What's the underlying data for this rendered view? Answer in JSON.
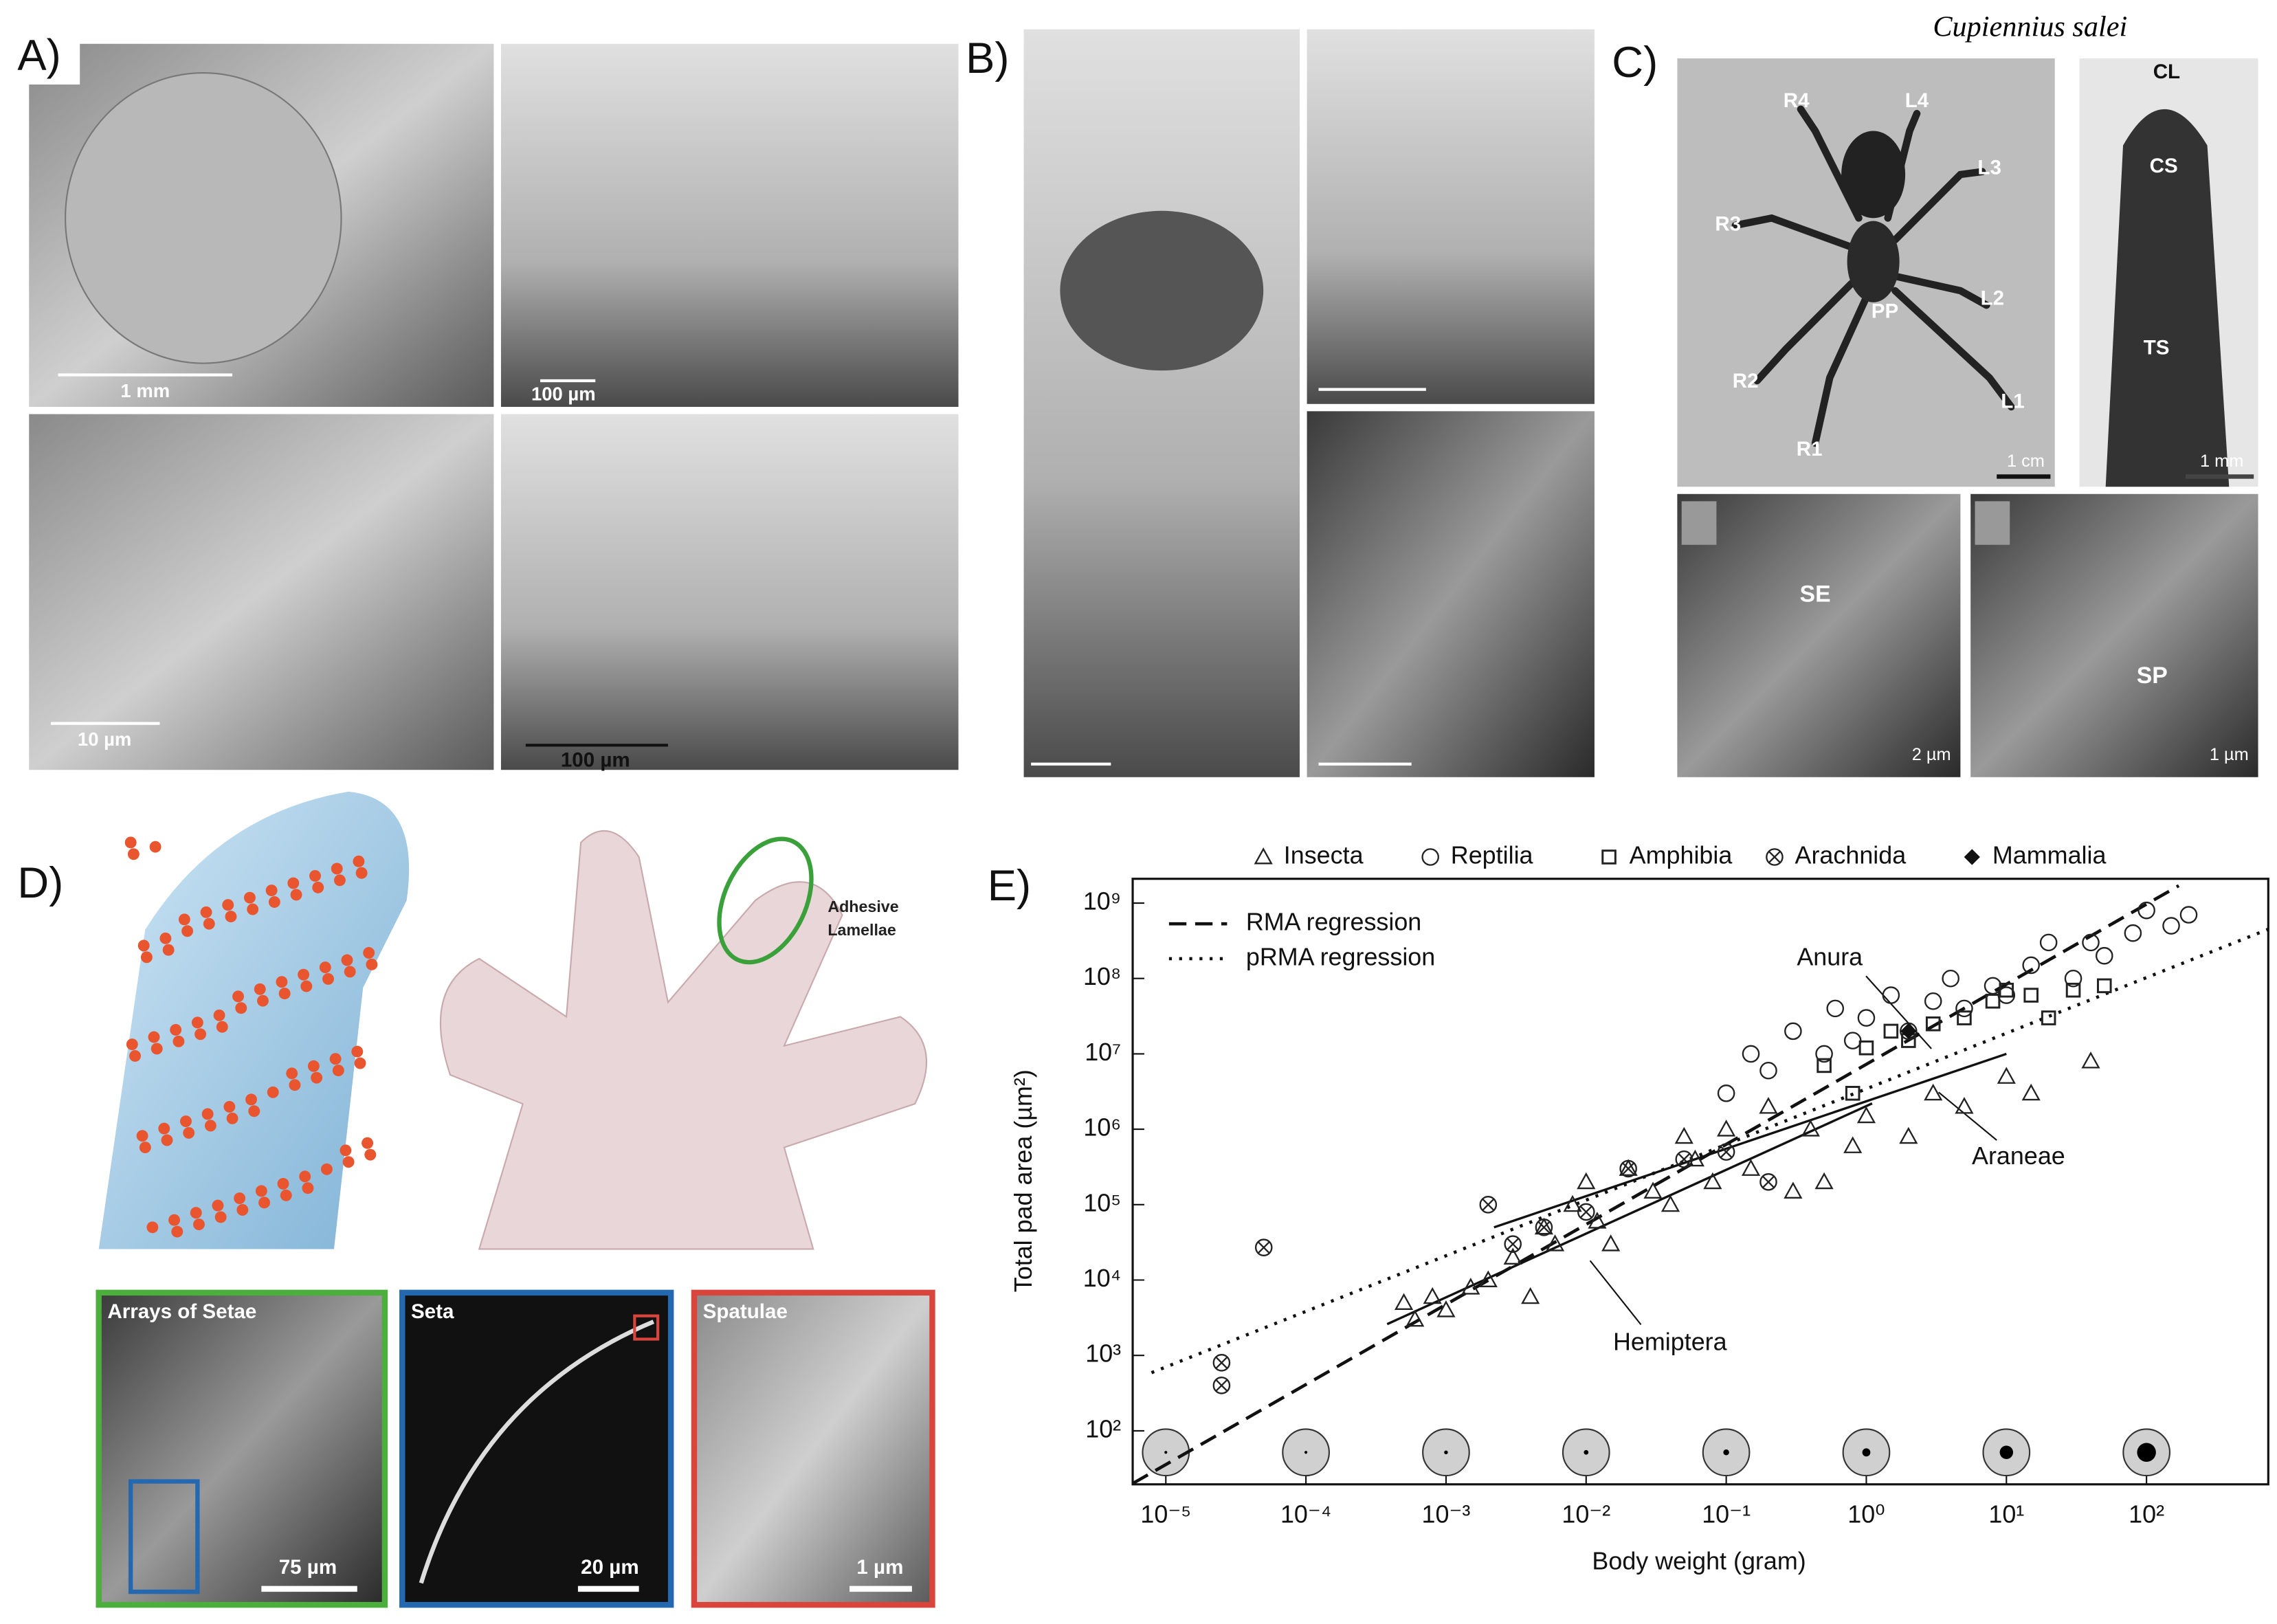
{
  "panels": {
    "A": {
      "label": "A)",
      "scale_bars": [
        "1 mm",
        "100 µm",
        "10 µm",
        "100 µm"
      ]
    },
    "B": {
      "label": "B)"
    },
    "C": {
      "label": "C)",
      "title": "Cupiennius salei",
      "spider_labels": [
        "R4",
        "L4",
        "L3",
        "R3",
        "PP",
        "L2",
        "R2",
        "L1",
        "R1"
      ],
      "spider_scale": "1 cm",
      "claw_labels": [
        "CL",
        "CS",
        "TS"
      ],
      "claw_scale": "1 mm",
      "setae_label": "SE",
      "setae_scale": "2 µm",
      "spatula_label": "SP",
      "spatula_scale": "1 µm"
    },
    "D": {
      "label": "D)",
      "lamellae": [
        "Adhesive",
        "Lamellae"
      ],
      "insets": [
        {
          "title": "Arrays of Setae",
          "scale": "75 µm"
        },
        {
          "title": "Seta",
          "scale": "20 µm"
        },
        {
          "title": "Spatulae",
          "scale": "1 µm"
        }
      ]
    },
    "E": {
      "label": "E)"
    }
  },
  "chart_data": {
    "type": "scatter",
    "xlabel": "Body weight (gram)",
    "ylabel": "Total pad area (µm²)",
    "xscale": "log",
    "yscale": "log",
    "xlim": [
      5.8e-06,
      740
    ],
    "ylim": [
      19.5,
      2100000000
    ],
    "xticks": [
      {
        "value": 1e-05,
        "label": "10⁻⁵"
      },
      {
        "value": 0.0001,
        "label": "10⁻⁴"
      },
      {
        "value": 0.001,
        "label": "10⁻³"
      },
      {
        "value": 0.01,
        "label": "10⁻²"
      },
      {
        "value": 0.1,
        "label": "10⁻¹"
      },
      {
        "value": 1,
        "label": "10⁰"
      },
      {
        "value": 10,
        "label": "10¹"
      },
      {
        "value": 100,
        "label": "10²"
      }
    ],
    "yticks": [
      {
        "value": 100,
        "label": "10²"
      },
      {
        "value": 1000,
        "label": "10³"
      },
      {
        "value": 10000,
        "label": "10⁴"
      },
      {
        "value": 100000,
        "label": "10⁵"
      },
      {
        "value": 1000000,
        "label": "10⁶"
      },
      {
        "value": 10000000,
        "label": "10⁷"
      },
      {
        "value": 100000000,
        "label": "10⁸"
      },
      {
        "value": 1000000000,
        "label": "10⁹"
      }
    ],
    "series": [
      {
        "name": "Insecta",
        "marker": "triangle",
        "color": "#222",
        "x": [
          0.0005,
          0.0006,
          0.0008,
          0.001,
          0.0015,
          0.002,
          0.003,
          0.004,
          0.005,
          0.006,
          0.008,
          0.01,
          0.012,
          0.015,
          0.02,
          0.03,
          0.04,
          0.05,
          0.06,
          0.08,
          0.1,
          0.15,
          0.2,
          0.3,
          0.4,
          0.5,
          0.8,
          1,
          2,
          3,
          5,
          10,
          15,
          40
        ],
        "values": [
          5000,
          3000,
          6000,
          4000,
          8000,
          10000,
          20000,
          6000,
          50000,
          30000,
          100000,
          200000,
          60000,
          30000,
          300000,
          150000,
          100000,
          800000,
          400000,
          200000,
          1000000,
          300000,
          2000000,
          150000,
          1000000,
          200000,
          600000,
          1500000,
          800000,
          3000000,
          2000000,
          5000000,
          3000000,
          8000000
        ]
      },
      {
        "name": "Reptilia",
        "marker": "circle",
        "color": "#222",
        "x": [
          0.1,
          0.15,
          0.2,
          0.3,
          0.5,
          0.6,
          0.8,
          1,
          1.5,
          2,
          3,
          4,
          5,
          8,
          10,
          15,
          20,
          30,
          40,
          50,
          80,
          100,
          150,
          200
        ],
        "values": [
          3000000,
          10000000,
          6000000,
          20000000,
          10000000,
          40000000,
          15000000,
          30000000,
          60000000,
          20000000,
          50000000,
          100000000,
          40000000,
          80000000,
          60000000,
          150000000,
          300000000,
          100000000,
          300000000,
          200000000,
          400000000,
          800000000,
          500000000,
          700000000
        ]
      },
      {
        "name": "Amphibia",
        "marker": "square",
        "color": "#222",
        "x": [
          0.5,
          0.8,
          1,
          1.5,
          2,
          3,
          5,
          8,
          10,
          15,
          20,
          30,
          50
        ],
        "values": [
          7000000,
          3000000,
          12000000,
          20000000,
          15000000,
          25000000,
          30000000,
          50000000,
          70000000,
          60000000,
          30000000,
          70000000,
          80000000
        ]
      },
      {
        "name": "Arachnida",
        "marker": "circle-x",
        "color": "#222",
        "x": [
          2.5e-05,
          2.5e-05,
          5e-05,
          0.002,
          0.003,
          0.005,
          0.01,
          0.02,
          0.05,
          0.1,
          0.2
        ],
        "values": [
          800,
          400,
          27000,
          100000,
          30000,
          50000,
          80000,
          300000,
          400000,
          500000,
          200000
        ]
      },
      {
        "name": "Mammalia",
        "marker": "diamond",
        "color": "#111",
        "x": [
          2
        ],
        "values": [
          20000000
        ]
      }
    ],
    "regressions": [
      {
        "name": "RMA regression",
        "dash": "dashed",
        "x": [
          5.8e-06,
          170
        ],
        "values": [
          20,
          1700000000
        ]
      },
      {
        "name": "pRMA regression",
        "dash": "dotted",
        "x": [
          7.9e-06,
          740
        ],
        "values": [
          590,
          450000000
        ]
      }
    ],
    "fits": [
      {
        "name": "Araneae",
        "x": [
          0.0022,
          10
        ],
        "values": [
          50000,
          10000000
        ]
      },
      {
        "name": "Hemiptera",
        "x": [
          0.00038,
          1.1
        ],
        "values": [
          2600,
          2200000
        ]
      }
    ],
    "annotations": [
      "Anura"
    ]
  }
}
